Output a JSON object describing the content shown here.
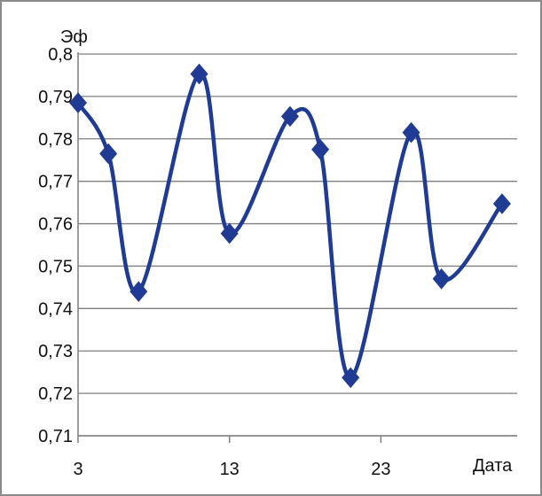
{
  "chart_data": {
    "type": "line",
    "title": "",
    "ylabel": "Эф",
    "xlabel": "Дата",
    "x": [
      3,
      5,
      7,
      11,
      13,
      17,
      19,
      21,
      25,
      27,
      31
    ],
    "series": [
      {
        "values": [
          0.7885,
          0.7765,
          0.744,
          0.7953,
          0.7577,
          0.7853,
          0.7775,
          0.7237,
          0.7815,
          0.747,
          0.7647
        ]
      }
    ],
    "xticks": [
      "3",
      "13",
      "23"
    ],
    "xtick_values": [
      3,
      13,
      23
    ],
    "yticks": [
      "0,71",
      "0,72",
      "0,73",
      "0,74",
      "0,75",
      "0,76",
      "0,77",
      "0,78",
      "0,79",
      "0,8"
    ],
    "ytick_values": [
      0.71,
      0.72,
      0.73,
      0.74,
      0.75,
      0.76,
      0.77,
      0.78,
      0.79,
      0.8
    ],
    "ylim": [
      0.71,
      0.8
    ],
    "xlim": [
      3,
      32
    ],
    "grid": "horizontal",
    "line_color": "#1F3B94",
    "marker": "diamond",
    "smooth": true
  }
}
